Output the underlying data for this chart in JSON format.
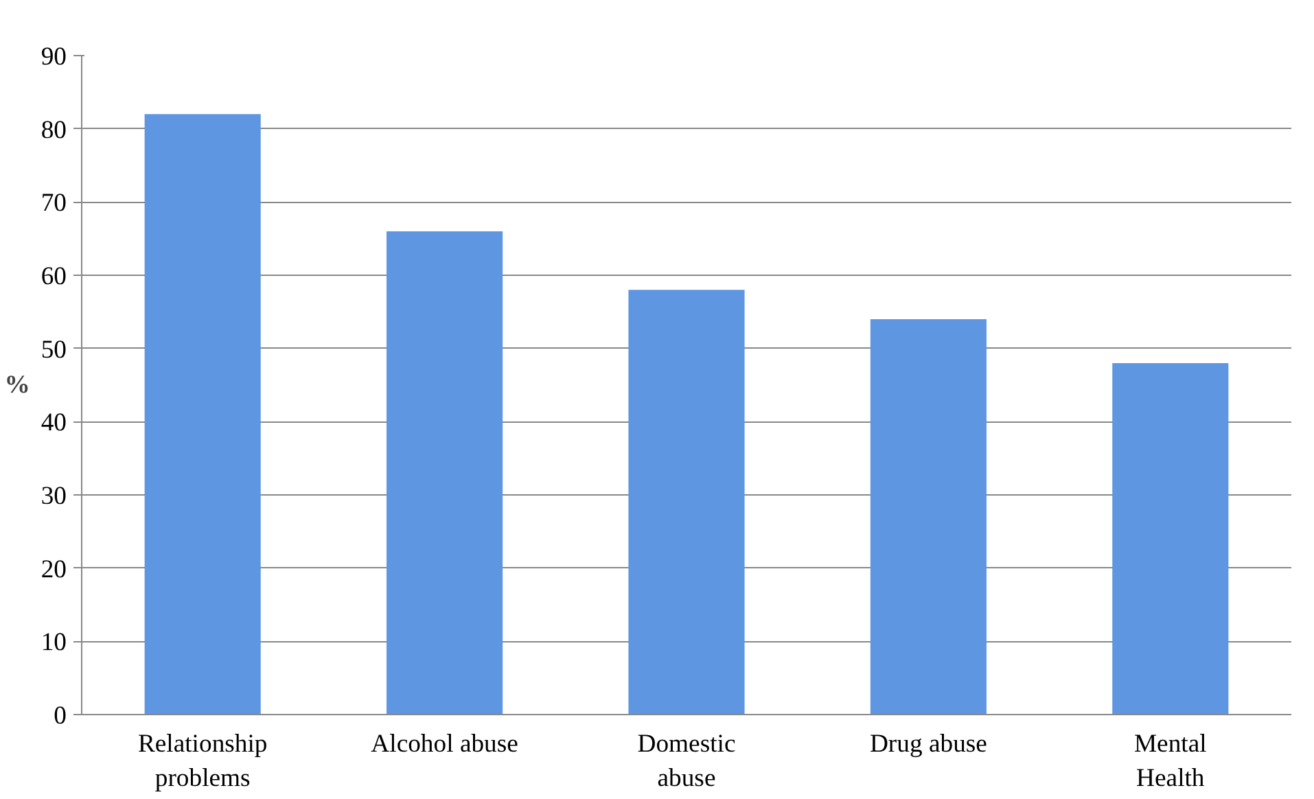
{
  "chart_data": {
    "type": "bar",
    "ylabel": "%",
    "categories": [
      "Relationship\nproblems",
      "Alcohol abuse",
      "Domestic\nabuse",
      "Drug abuse",
      "Mental\nHealth"
    ],
    "values": [
      82,
      66,
      58,
      54,
      48
    ],
    "color": "#5f96e2",
    "ylim": [
      0,
      90
    ],
    "yticks": [
      0,
      10,
      20,
      30,
      40,
      50,
      60,
      70,
      80,
      90
    ],
    "grid": "y"
  }
}
